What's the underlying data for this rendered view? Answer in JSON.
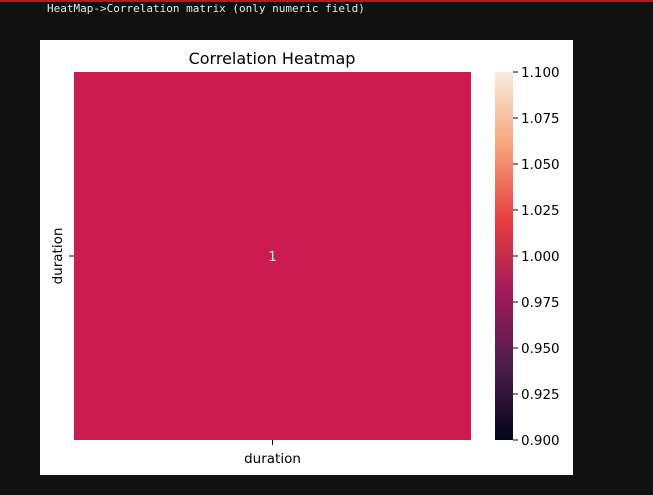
{
  "notebook": {
    "cell_caption": "HeatMap->Correlation matrix (only numeric field)"
  },
  "chart_data": {
    "type": "heatmap",
    "title": "Correlation Heatmap",
    "x_categories": [
      "duration"
    ],
    "y_categories": [
      "duration"
    ],
    "values": [
      [
        1
      ]
    ],
    "annotations": [
      [
        "1"
      ]
    ],
    "colormap": "rocket",
    "cell_color": "#cb1b4f",
    "colorbar": {
      "range": [
        0.9,
        1.1
      ],
      "ticks": [
        1.1,
        1.075,
        1.05,
        1.025,
        1.0,
        0.975,
        0.95,
        0.925,
        0.9
      ],
      "tick_labels": [
        "1.100",
        "1.075",
        "1.050",
        "1.025",
        "1.000",
        "0.975",
        "0.950",
        "0.925",
        "0.900"
      ],
      "gradient_stops": [
        "#03051a",
        "#4c1d4b",
        "#a11a5b",
        "#e83f3f",
        "#f6a47c",
        "#faebdd"
      ]
    }
  }
}
